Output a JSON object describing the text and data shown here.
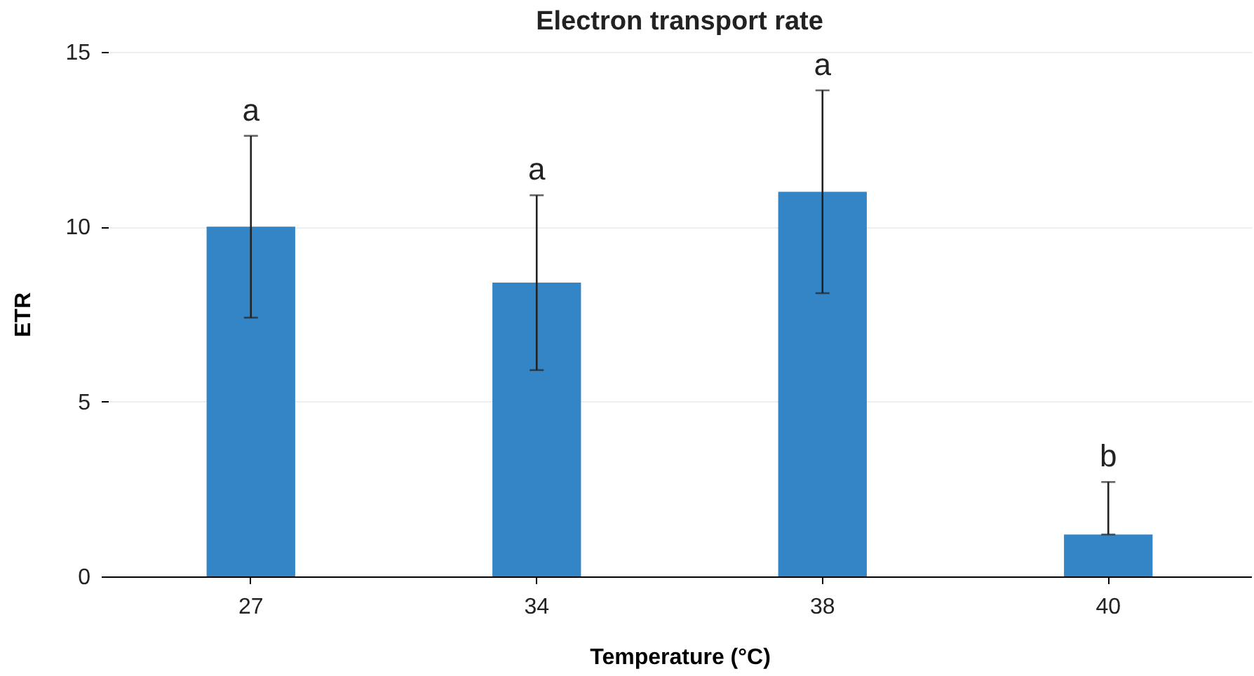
{
  "chart_data": {
    "type": "bar",
    "title": "Electron transport rate",
    "xlabel": "Temperature (°C)",
    "ylabel": "ETR",
    "categories": [
      "27",
      "34",
      "38",
      "40"
    ],
    "values": [
      10.0,
      8.4,
      11.0,
      1.2
    ],
    "errors": [
      2.6,
      2.5,
      2.9,
      [
        1.2,
        2.7
      ]
    ],
    "color": "#3385c6",
    "ylim": [
      0,
      15
    ],
    "yticks": [
      0,
      5,
      10,
      15
    ],
    "grid": "y",
    "annotations": [
      "a",
      "a",
      "a",
      "b"
    ]
  }
}
